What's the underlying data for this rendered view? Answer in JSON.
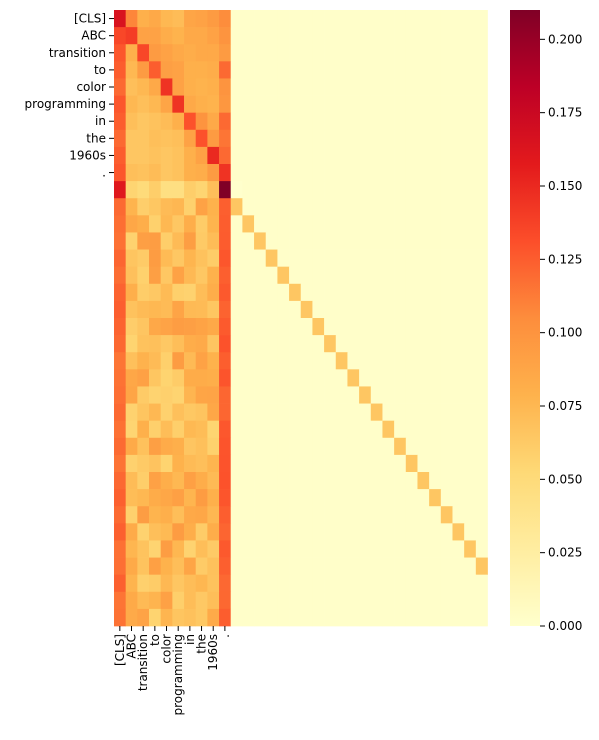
{
  "chart_data": {
    "type": "heatmap",
    "title": "",
    "xlabel": "",
    "ylabel": "",
    "x_tick_labels": [
      "[CLS]",
      "ABC",
      "transition",
      "to",
      "color",
      "programming",
      "in",
      "the",
      "1960s",
      "."
    ],
    "y_tick_labels": [
      "[CLS]",
      "ABC",
      "transition",
      "to",
      "color",
      "programming",
      "in",
      "the",
      "1960s",
      "."
    ],
    "n_rows": 36,
    "n_cols": 32,
    "colormap": "YlOrRd",
    "colorbar": {
      "vmin": 0.0,
      "vmax": 0.21,
      "ticks": [
        0.0,
        0.025,
        0.05,
        0.075,
        0.1,
        0.125,
        0.15,
        0.175,
        0.2
      ],
      "tick_labels": [
        "0.000",
        "0.025",
        "0.050",
        "0.075",
        "0.100",
        "0.125",
        "0.150",
        "0.175",
        "0.200"
      ]
    },
    "rows": [
      [
        0.165,
        0.108,
        0.08,
        0.085,
        0.075,
        0.072,
        0.088,
        0.09,
        0.095,
        0.105
      ],
      [
        0.135,
        0.14,
        0.09,
        0.09,
        0.082,
        0.078,
        0.085,
        0.085,
        0.09,
        0.1
      ],
      [
        0.128,
        0.08,
        0.135,
        0.095,
        0.09,
        0.085,
        0.082,
        0.085,
        0.085,
        0.095
      ],
      [
        0.125,
        0.075,
        0.095,
        0.125,
        0.092,
        0.09,
        0.08,
        0.08,
        0.082,
        0.12
      ],
      [
        0.12,
        0.07,
        0.075,
        0.085,
        0.145,
        0.09,
        0.08,
        0.078,
        0.08,
        0.1
      ],
      [
        0.128,
        0.075,
        0.07,
        0.075,
        0.088,
        0.145,
        0.085,
        0.08,
        0.078,
        0.098
      ],
      [
        0.125,
        0.07,
        0.065,
        0.068,
        0.072,
        0.08,
        0.13,
        0.1,
        0.085,
        0.12
      ],
      [
        0.12,
        0.065,
        0.065,
        0.07,
        0.068,
        0.07,
        0.09,
        0.13,
        0.095,
        0.115
      ],
      [
        0.125,
        0.065,
        0.065,
        0.068,
        0.065,
        0.068,
        0.08,
        0.09,
        0.15,
        0.12
      ],
      [
        0.128,
        0.07,
        0.068,
        0.072,
        0.065,
        0.068,
        0.08,
        0.082,
        0.095,
        0.145
      ],
      [
        0.16,
        0.055,
        0.05,
        0.06,
        0.045,
        0.045,
        0.06,
        0.055,
        0.07,
        0.21,
        0.0
      ]
    ],
    "tail_rows": {
      "count": 25,
      "token_value_range": [
        0.055,
        0.095
      ],
      "cls_value": 0.12,
      "period_value": 0.125,
      "diagonal_value": 0.065,
      "other_value": 0.002
    }
  }
}
